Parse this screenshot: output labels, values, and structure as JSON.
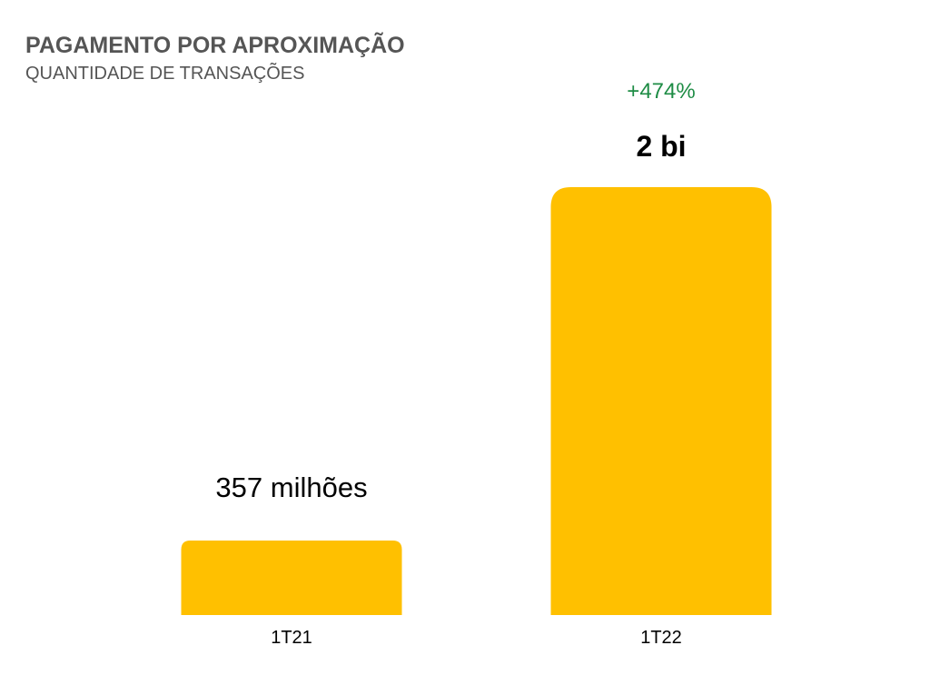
{
  "title": "PAGAMENTO POR APROXIMAÇÃO",
  "subtitle": "QUANTIDADE DE TRANSAÇÕES",
  "colors": {
    "bar": "#FFC000",
    "growth": "#1E8C45",
    "label": "#000000"
  },
  "chart_data": {
    "type": "bar",
    "title": "PAGAMENTO POR APROXIMAÇÃO",
    "subtitle": "QUANTIDADE DE TRANSAÇÕES",
    "categories": [
      "1T21",
      "1T22"
    ],
    "values": [
      357000000,
      2050000000
    ],
    "data_labels": [
      "357 milhões",
      "2 bi"
    ],
    "annotations": [
      {
        "category": "1T22",
        "text": "+474%"
      }
    ],
    "ylim": [
      0,
      2050000000
    ],
    "grid": false,
    "legend": "none"
  }
}
